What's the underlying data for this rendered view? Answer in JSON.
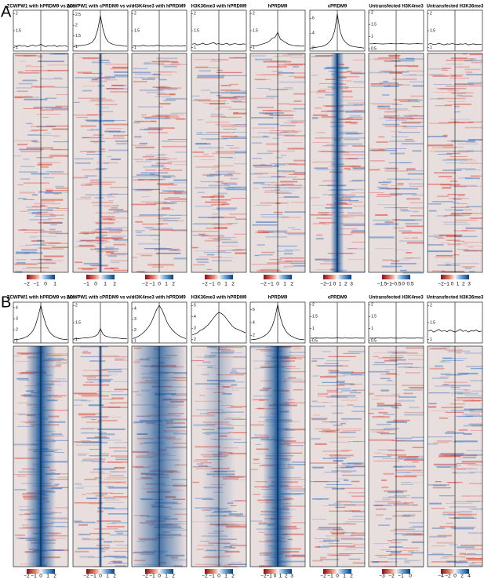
{
  "panel_labels": [
    "A",
    "B"
  ],
  "chart_data": [
    {
      "type": "line",
      "title": "ZCWPW1 with hPRDM9 vs w/o",
      "values": [
        1.05,
        1.03,
        1.07,
        1.04,
        1.06,
        1.02,
        1.05,
        1.08,
        1.04,
        1.06,
        1.1,
        1.05,
        1.03,
        1.06,
        1.04,
        1.07,
        1.03,
        1.05,
        1.04,
        1.06,
        1.03
      ],
      "ylim": [
        0.9,
        2.1
      ],
      "yticks": [
        1,
        1.5,
        2
      ],
      "center_band": "none",
      "colorbar_labels": [
        "−2",
        "−1",
        "0",
        "1"
      ]
    },
    {
      "type": "line",
      "title": "ZCWPW1 with cPRDM9 vs w/o",
      "values": [
        1.02,
        1.03,
        1.05,
        1.06,
        1.08,
        1.1,
        1.15,
        1.22,
        1.4,
        1.8,
        2.45,
        1.8,
        1.4,
        1.22,
        1.15,
        1.1,
        1.08,
        1.06,
        1.05,
        1.03,
        1.02
      ],
      "ylim": [
        0.8,
        2.7
      ],
      "yticks": [
        1,
        1.5,
        2,
        2.5
      ],
      "center_band": "thin",
      "colorbar_labels": [
        "−1",
        "0",
        "1",
        "2"
      ]
    },
    {
      "type": "line",
      "title": "H3K4me3 with hPRDM9",
      "values": [
        1.05,
        1.06,
        1.04,
        1.05,
        1.07,
        1.05,
        1.04,
        1.06,
        1.05,
        1.07,
        1.06,
        1.05,
        1.04,
        1.06,
        1.05,
        1.04,
        1.06,
        1.05,
        1.04,
        1.05,
        1.05
      ],
      "ylim": [
        0.9,
        2.1
      ],
      "yticks": [
        1,
        1.5,
        2
      ],
      "center_band": "none",
      "colorbar_labels": [
        "−2",
        "−1",
        "0",
        "1",
        "2"
      ]
    },
    {
      "type": "line",
      "title": "H3K36me3 with hPRDM9",
      "values": [
        1.1,
        1.12,
        1.08,
        1.1,
        1.13,
        1.09,
        1.1,
        1.12,
        1.15,
        1.1,
        1.12,
        1.09,
        1.1,
        1.13,
        1.08,
        1.1,
        1.12,
        1.1,
        1.09,
        1.11,
        1.1
      ],
      "ylim": [
        0.9,
        2.1
      ],
      "yticks": [
        1,
        1.5,
        2
      ],
      "center_band": "none",
      "colorbar_labels": [
        "−2",
        "−1",
        "0",
        "1",
        "2"
      ]
    },
    {
      "type": "line",
      "title": "hPRDM9",
      "values": [
        1.05,
        1.06,
        1.05,
        1.08,
        1.1,
        1.12,
        1.15,
        1.2,
        1.28,
        1.3,
        1.45,
        1.25,
        1.2,
        1.15,
        1.1,
        1.08,
        1.06,
        1.05,
        1.05,
        1.04,
        1.05
      ],
      "ylim": [
        0.9,
        2.1
      ],
      "yticks": [
        1,
        1.5,
        2
      ],
      "center_band": "none",
      "colorbar_labels": [
        "−2",
        "−1",
        "0",
        "1",
        "2"
      ]
    },
    {
      "type": "line",
      "title": "cPRDM9",
      "values": [
        2,
        2.05,
        2.1,
        2.15,
        2.2,
        2.3,
        2.5,
        2.8,
        3.3,
        4.3,
        6.6,
        4.3,
        3.3,
        2.8,
        2.5,
        2.3,
        2.2,
        2.15,
        2.1,
        2.05,
        2
      ],
      "ylim": [
        1.6,
        7.1
      ],
      "yticks": [
        2,
        4,
        6
      ],
      "center_band": "narrow",
      "colorbar_labels": [
        "−2",
        "−1",
        "0",
        "1",
        "2",
        "3"
      ]
    },
    {
      "type": "line",
      "title": "Untransfected H3K4me3",
      "values": [
        0.7,
        0.7,
        0.71,
        0.7,
        0.7,
        0.69,
        0.7,
        0.7,
        0.71,
        0.7,
        0.7,
        0.7,
        0.71,
        0.7,
        0.7,
        0.69,
        0.7,
        0.7,
        0.71,
        0.7,
        0.7
      ],
      "ylim": [
        0.4,
        2.1
      ],
      "yticks": [
        0.5,
        1,
        1.5,
        2
      ],
      "center_band": "none",
      "colorbar_labels": [
        "−1.5",
        "−1",
        "−0.5",
        "0",
        "0.5"
      ]
    },
    {
      "type": "line",
      "title": "Untransfected H3K36me3",
      "values": [
        1.1,
        1.12,
        1.09,
        1.1,
        1.13,
        1.1,
        1.08,
        1.11,
        1.1,
        1.12,
        1.1,
        1.09,
        1.11,
        1.1,
        1.12,
        1.08,
        1.1,
        1.11,
        1.09,
        1.1,
        1.1
      ],
      "ylim": [
        0.9,
        2.1
      ],
      "yticks": [
        1,
        1.5,
        2
      ],
      "center_band": "none",
      "colorbar_labels": [
        "−2",
        "−1",
        "0",
        "1",
        "2",
        "3"
      ]
    },
    {
      "type": "line",
      "title": "ZCWPW1 with hPRDM9 vs w/o",
      "values": [
        1.1,
        1.12,
        1.15,
        1.2,
        1.3,
        1.4,
        1.6,
        1.9,
        2.4,
        3.2,
        4.2,
        3.2,
        2.4,
        1.9,
        1.6,
        1.4,
        1.3,
        1.2,
        1.15,
        1.12,
        1.1
      ],
      "ylim": [
        0.8,
        4.5
      ],
      "yticks": [
        1,
        2,
        3,
        4
      ],
      "center_band": "wide",
      "colorbar_labels": [
        "−2",
        "−1",
        "0",
        "1",
        "2"
      ]
    },
    {
      "type": "line",
      "title": "ZCWPW1 with cPRDM9 vs w/o",
      "values": [
        1.02,
        1.03,
        1.03,
        1.04,
        1.05,
        1.05,
        1.06,
        1.08,
        1.1,
        1.15,
        1.32,
        1.15,
        1.1,
        1.08,
        1.06,
        1.05,
        1.05,
        1.04,
        1.03,
        1.03,
        1.02
      ],
      "ylim": [
        0.9,
        2.1
      ],
      "yticks": [
        1,
        1.5,
        2
      ],
      "center_band": "thin",
      "colorbar_labels": [
        "−2",
        "−1",
        "0",
        "1",
        "2"
      ]
    },
    {
      "type": "line",
      "title": "H3K4me3 with hPRDM9",
      "values": [
        1.2,
        1.3,
        1.4,
        1.55,
        1.75,
        2,
        2.3,
        2.7,
        3.3,
        3.9,
        4.3,
        3.9,
        3.3,
        2.7,
        2.3,
        2,
        1.75,
        1.55,
        1.4,
        1.3,
        1.2
      ],
      "ylim": [
        0.8,
        4.6
      ],
      "yticks": [
        1,
        2,
        3,
        4
      ],
      "center_band": "broad",
      "colorbar_labels": [
        "−2",
        "−1",
        "0",
        "1",
        "2"
      ]
    },
    {
      "type": "line",
      "title": "H3K36me3 with hPRDM9",
      "values": [
        2.4,
        2.5,
        2.6,
        2.8,
        2.9,
        3.1,
        3.3,
        3.6,
        3.9,
        4.2,
        4.4,
        4.3,
        4.1,
        3.8,
        3.5,
        3.2,
        3,
        2.9,
        2.8,
        2.7,
        2.6
      ],
      "ylim": [
        1.7,
        5.3
      ],
      "yticks": [
        2,
        3,
        4,
        5
      ],
      "center_band": "faint",
      "colorbar_labels": [
        "−2",
        "−1",
        "0",
        "1",
        "2"
      ]
    },
    {
      "type": "line",
      "title": "hPRDM9",
      "values": [
        1.3,
        1.35,
        1.4,
        1.5,
        1.7,
        1.9,
        2.2,
        2.7,
        3.5,
        4.8,
        6.8,
        4.8,
        3.5,
        2.7,
        2.2,
        1.9,
        1.7,
        1.5,
        1.4,
        1.35,
        1.3
      ],
      "ylim": [
        0.8,
        7.2
      ],
      "yticks": [
        2,
        4,
        6
      ],
      "center_band": "wide",
      "colorbar_labels": [
        "−2",
        "−1",
        "0",
        "1",
        "2",
        "3"
      ]
    },
    {
      "type": "line",
      "title": "cPRDM9",
      "values": [
        0.6,
        0.6,
        0.61,
        0.6,
        0.6,
        0.6,
        0.61,
        0.6,
        0.6,
        0.6,
        0.62,
        0.6,
        0.6,
        0.61,
        0.6,
        0.6,
        0.6,
        0.61,
        0.6,
        0.6,
        0.6
      ],
      "ylim": [
        0.4,
        2.1
      ],
      "yticks": [
        0.5,
        1,
        1.5,
        2
      ],
      "center_band": "none",
      "colorbar_labels": [
        "−2",
        "−1",
        "0",
        "1",
        "2"
      ]
    },
    {
      "type": "line",
      "title": "Untransfected H3K4me3",
      "values": [
        0.6,
        0.6,
        0.6,
        0.61,
        0.6,
        0.6,
        0.6,
        0.6,
        0.61,
        0.6,
        0.6,
        0.6,
        0.6,
        0.61,
        0.6,
        0.6,
        0.6,
        0.6,
        0.61,
        0.6,
        0.6
      ],
      "ylim": [
        0.4,
        2.1
      ],
      "yticks": [
        0.5,
        1,
        1.5,
        2
      ],
      "center_band": "none",
      "colorbar_labels": [
        "−3",
        "−2",
        "−1",
        "0"
      ]
    },
    {
      "type": "line",
      "title": "Untransfected H3K36me3",
      "values": [
        1.25,
        1.28,
        1.22,
        1.26,
        1.3,
        1.24,
        1.27,
        1.23,
        1.28,
        1.25,
        1.22,
        1.26,
        1.3,
        1.24,
        1.27,
        1.22,
        1.26,
        1.25,
        1.28,
        1.23,
        1.25
      ],
      "ylim": [
        0.9,
        2.1
      ],
      "yticks": [
        1,
        1.5,
        2
      ],
      "center_band": "none",
      "colorbar_labels": [
        "−4",
        "−2",
        "0",
        "2",
        "4"
      ]
    }
  ]
}
